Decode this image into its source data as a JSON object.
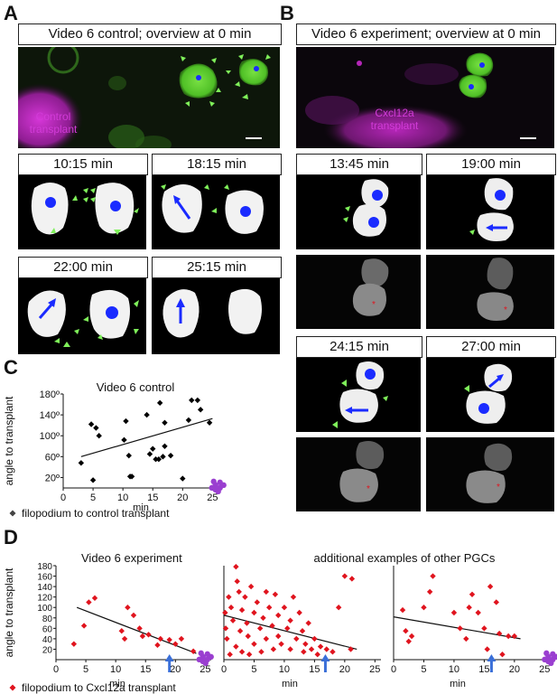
{
  "panels": {
    "A": {
      "letter": "A",
      "title": "Video 6 control; overview at 0 min",
      "overlay": "Control\ntransplant",
      "frames": [
        "10:15 min",
        "18:15 min",
        "22:00 min",
        "25:15 min"
      ]
    },
    "B": {
      "letter": "B",
      "title": "Video 6 experiment; overview at 0 min",
      "overlay": "Cxcl12a\ntransplant",
      "frames": [
        "13:45 min",
        "19:00 min",
        "24:15 min",
        "27:00 min"
      ]
    },
    "C": {
      "letter": "C",
      "legend": "filopodium to control transplant"
    },
    "D": {
      "letter": "D",
      "legend": "filopodium to Cxcl12a transplant"
    }
  },
  "colors": {
    "green_cell": "#5fd22a",
    "magenta": "#c330c8",
    "marker_blue": "#1a2bff",
    "arrowhead_green": "#7ff05a",
    "red_point": "#e0141e",
    "arrow_blue": "#3a6fd8"
  },
  "chart_data": [
    {
      "type": "scatter",
      "title": "Video 6 control",
      "xlabel": "min",
      "ylabel": "angle to transplant",
      "xlim": [
        0,
        26
      ],
      "ylim": [
        0,
        180
      ],
      "xticks": [
        0,
        5,
        10,
        15,
        20,
        25
      ],
      "yticks": [
        20,
        60,
        100,
        140,
        180
      ],
      "ytick_labels": [
        "20º",
        "60º",
        "100º",
        "140º",
        "180º"
      ],
      "series": [
        {
          "name": "filopodium to control transplant",
          "marker": "diamond",
          "color": "#000000",
          "points": [
            [
              3,
              48
            ],
            [
              4.7,
              122
            ],
            [
              5,
              15
            ],
            [
              5.5,
              115
            ],
            [
              6,
              100
            ],
            [
              10.2,
              92
            ],
            [
              10.5,
              128
            ],
            [
              11,
              62
            ],
            [
              11.2,
              22
            ],
            [
              11.5,
              22
            ],
            [
              14,
              140
            ],
            [
              14.5,
              65
            ],
            [
              15,
              75
            ],
            [
              15.5,
              55
            ],
            [
              16,
              55
            ],
            [
              16.2,
              163
            ],
            [
              16.7,
              60
            ],
            [
              17,
              80
            ],
            [
              17,
              125
            ],
            [
              18,
              62
            ],
            [
              20,
              18
            ],
            [
              21,
              130
            ],
            [
              21.5,
              168
            ],
            [
              22.5,
              168
            ],
            [
              23,
              150
            ],
            [
              24.5,
              125
            ]
          ]
        }
      ],
      "trendline": [
        [
          3,
          60
        ],
        [
          25,
          133
        ]
      ]
    },
    {
      "type": "scatter",
      "title": "Video 6 experiment",
      "xlabel": "min",
      "ylabel": "angle to transplant",
      "xlim": [
        0,
        26
      ],
      "ylim": [
        0,
        180
      ],
      "xticks": [
        0,
        5,
        10,
        15,
        20,
        25
      ],
      "yticks": [
        20,
        40,
        60,
        80,
        100,
        120,
        140,
        160,
        180
      ],
      "series": [
        {
          "name": "filopodium to Cxcl12a transplant",
          "marker": "diamond",
          "color": "#e0141e",
          "points": [
            [
              3,
              30
            ],
            [
              4.7,
              65
            ],
            [
              5.5,
              110
            ],
            [
              6.5,
              118
            ],
            [
              11,
              55
            ],
            [
              11.5,
              40
            ],
            [
              12,
              100
            ],
            [
              13,
              85
            ],
            [
              14,
              60
            ],
            [
              14.5,
              45
            ],
            [
              15.5,
              48
            ],
            [
              17,
              28
            ],
            [
              17.5,
              40
            ],
            [
              19,
              38
            ],
            [
              20,
              30
            ],
            [
              21,
              40
            ],
            [
              23,
              16
            ]
          ]
        }
      ],
      "trendline": [
        [
          3.5,
          100
        ],
        [
          23.5,
          12
        ]
      ]
    },
    {
      "type": "scatter",
      "title": "additional examples of other PGCs",
      "xlabel": "min",
      "xlim": [
        0,
        26
      ],
      "ylim": [
        0,
        180
      ],
      "xticks": [
        0,
        5,
        10,
        15,
        20,
        25
      ],
      "series": [
        {
          "name": "filopodium to Cxcl12a transplant",
          "marker": "diamond",
          "color": "#e0141e",
          "points": [
            [
              0.2,
              90
            ],
            [
              0.3,
              60
            ],
            [
              0.5,
              40
            ],
            [
              0.8,
              120
            ],
            [
              1,
              10
            ],
            [
              1.2,
              100
            ],
            [
              1.5,
              75
            ],
            [
              2,
              178
            ],
            [
              2,
              25
            ],
            [
              2.2,
              150
            ],
            [
              2.5,
              130
            ],
            [
              2.7,
              55
            ],
            [
              3,
              95
            ],
            [
              3,
              15
            ],
            [
              3.5,
              120
            ],
            [
              3.8,
              70
            ],
            [
              4,
              45
            ],
            [
              4.2,
              10
            ],
            [
              4.5,
              140
            ],
            [
              5,
              90
            ],
            [
              5,
              30
            ],
            [
              5.5,
              110
            ],
            [
              6,
              60
            ],
            [
              6.2,
              15
            ],
            [
              6.5,
              80
            ],
            [
              7,
              130
            ],
            [
              7,
              40
            ],
            [
              7.5,
              100
            ],
            [
              8,
              65
            ],
            [
              8.2,
              20
            ],
            [
              8.5,
              125
            ],
            [
              9,
              85
            ],
            [
              9,
              45
            ],
            [
              9.5,
              30
            ],
            [
              10,
              100
            ],
            [
              10.5,
              60
            ],
            [
              11,
              75
            ],
            [
              11,
              20
            ],
            [
              11.5,
              120
            ],
            [
              12,
              40
            ],
            [
              12.5,
              90
            ],
            [
              13,
              55
            ],
            [
              13.2,
              15
            ],
            [
              13.5,
              30
            ],
            [
              14,
              70
            ],
            [
              14.5,
              20
            ],
            [
              15,
              40
            ],
            [
              15.5,
              10
            ],
            [
              16,
              25
            ],
            [
              17,
              20
            ],
            [
              18,
              15
            ],
            [
              19,
              100
            ],
            [
              20,
              160
            ],
            [
              21,
              20
            ],
            [
              21.2,
              155
            ]
          ]
        }
      ],
      "trendline": [
        [
          0,
          85
        ],
        [
          22,
          20
        ]
      ]
    },
    {
      "type": "scatter",
      "xlabel": "min",
      "xlim": [
        0,
        26
      ],
      "ylim": [
        0,
        180
      ],
      "xticks": [
        0,
        5,
        10,
        15,
        20,
        25
      ],
      "series": [
        {
          "name": "filopodium to Cxcl12a transplant",
          "marker": "diamond",
          "color": "#e0141e",
          "points": [
            [
              1.5,
              95
            ],
            [
              2,
              55
            ],
            [
              2.5,
              35
            ],
            [
              3,
              45
            ],
            [
              5,
              100
            ],
            [
              6,
              130
            ],
            [
              6.5,
              160
            ],
            [
              10,
              90
            ],
            [
              11,
              60
            ],
            [
              12,
              40
            ],
            [
              12.5,
              100
            ],
            [
              13,
              125
            ],
            [
              14,
              90
            ],
            [
              15,
              60
            ],
            [
              15.5,
              20
            ],
            [
              16,
              140
            ],
            [
              17,
              110
            ],
            [
              17.5,
              50
            ],
            [
              18,
              10
            ],
            [
              19,
              45
            ],
            [
              20,
              45
            ]
          ]
        }
      ],
      "trendline": [
        [
          0,
          82
        ],
        [
          21,
          40
        ]
      ]
    }
  ]
}
